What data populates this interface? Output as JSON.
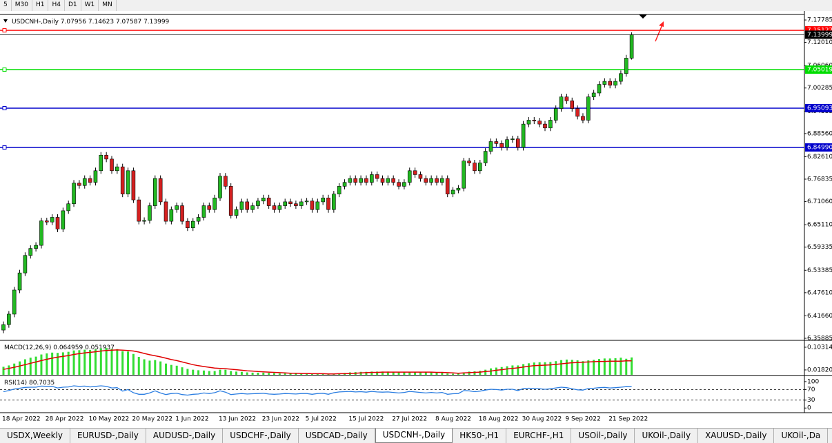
{
  "toolbar": {
    "timeframes": [
      "5",
      "M30",
      "H1",
      "H4",
      "D1",
      "W1",
      "MN"
    ]
  },
  "chart_data": [
    {
      "type": "candlestick",
      "title": "USDCNH-,Daily",
      "categories": [
        "18 Apr 2022",
        null,
        null,
        null,
        null,
        null,
        null,
        null,
        "28 Apr 2022",
        null,
        null,
        null,
        null,
        null,
        null,
        null,
        "10 May 2022",
        null,
        null,
        null,
        null,
        null,
        null,
        null,
        "20 May 2022",
        null,
        null,
        null,
        null,
        null,
        null,
        null,
        "1 Jun 2022",
        null,
        null,
        null,
        null,
        null,
        null,
        null,
        "13 Jun 2022",
        null,
        null,
        null,
        null,
        null,
        null,
        null,
        "23 Jun 2022",
        null,
        null,
        null,
        null,
        null,
        null,
        null,
        "5 Jul 2022",
        null,
        null,
        null,
        null,
        null,
        null,
        null,
        "15 Jul 2022",
        null,
        null,
        null,
        null,
        null,
        null,
        null,
        "27 Jul 2022",
        null,
        null,
        null,
        null,
        null,
        null,
        null,
        "8 Aug 2022",
        null,
        null,
        null,
        null,
        null,
        null,
        null,
        "18 Aug 2022",
        null,
        null,
        null,
        null,
        null,
        null,
        null,
        "30 Aug 2022",
        null,
        null,
        null,
        null,
        null,
        null,
        null,
        "9 Sep 2022",
        null,
        null,
        null,
        null,
        null,
        null,
        null,
        "21 Sep 2022",
        null,
        null,
        null,
        null
      ],
      "candles": [
        [
          6.38,
          6.402,
          6.372,
          6.394
        ],
        [
          6.394,
          6.429,
          6.386,
          6.421
        ],
        [
          6.421,
          6.491,
          6.413,
          6.483
        ],
        [
          6.483,
          6.535,
          6.475,
          6.527
        ],
        [
          6.527,
          6.58,
          6.519,
          6.572
        ],
        [
          6.572,
          6.598,
          6.564,
          6.59
        ],
        [
          6.59,
          6.606,
          6.582,
          6.598
        ],
        [
          6.598,
          6.669,
          6.59,
          6.661
        ],
        [
          6.661,
          6.669,
          6.65,
          6.658
        ],
        [
          6.658,
          6.678,
          6.65,
          6.67
        ],
        [
          6.67,
          6.678,
          6.632,
          6.64
        ],
        [
          6.64,
          6.695,
          6.632,
          6.687
        ],
        [
          6.687,
          6.713,
          6.679,
          6.705
        ],
        [
          6.705,
          6.766,
          6.697,
          6.758
        ],
        [
          6.758,
          6.766,
          6.744,
          6.752
        ],
        [
          6.752,
          6.778,
          6.744,
          6.77
        ],
        [
          6.77,
          6.778,
          6.752,
          6.76
        ],
        [
          6.76,
          6.798,
          6.752,
          6.79
        ],
        [
          6.79,
          6.838,
          6.782,
          6.83
        ],
        [
          6.83,
          6.838,
          6.812,
          6.82
        ],
        [
          6.82,
          6.828,
          6.782,
          6.79
        ],
        [
          6.79,
          6.808,
          6.782,
          6.8
        ],
        [
          6.8,
          6.808,
          6.722,
          6.73
        ],
        [
          6.73,
          6.798,
          6.722,
          6.79
        ],
        [
          6.79,
          6.798,
          6.707,
          6.715
        ],
        [
          6.715,
          6.723,
          6.652,
          6.66
        ],
        [
          6.66,
          6.67,
          6.652,
          6.662
        ],
        [
          6.662,
          6.708,
          6.654,
          6.7
        ],
        [
          6.7,
          6.778,
          6.692,
          6.77
        ],
        [
          6.77,
          6.778,
          6.702,
          6.71
        ],
        [
          6.71,
          6.718,
          6.652,
          6.66
        ],
        [
          6.66,
          6.698,
          6.652,
          6.69
        ],
        [
          6.69,
          6.708,
          6.682,
          6.7
        ],
        [
          6.7,
          6.708,
          6.652,
          6.66
        ],
        [
          6.66,
          6.668,
          6.635,
          6.643
        ],
        [
          6.643,
          6.668,
          6.635,
          6.66
        ],
        [
          6.66,
          6.678,
          6.652,
          6.67
        ],
        [
          6.67,
          6.708,
          6.662,
          6.7
        ],
        [
          6.7,
          6.708,
          6.682,
          6.69
        ],
        [
          6.69,
          6.728,
          6.682,
          6.72
        ],
        [
          6.72,
          6.784,
          6.712,
          6.776
        ],
        [
          6.776,
          6.784,
          6.742,
          6.75
        ],
        [
          6.75,
          6.758,
          6.667,
          6.675
        ],
        [
          6.675,
          6.698,
          6.667,
          6.69
        ],
        [
          6.69,
          6.718,
          6.682,
          6.71
        ],
        [
          6.71,
          6.718,
          6.682,
          6.69
        ],
        [
          6.69,
          6.708,
          6.682,
          6.7
        ],
        [
          6.7,
          6.72,
          6.692,
          6.712
        ],
        [
          6.712,
          6.728,
          6.704,
          6.72
        ],
        [
          6.72,
          6.728,
          6.692,
          6.7
        ],
        [
          6.7,
          6.708,
          6.682,
          6.69
        ],
        [
          6.69,
          6.708,
          6.682,
          6.7
        ],
        [
          6.7,
          6.718,
          6.692,
          6.71
        ],
        [
          6.71,
          6.718,
          6.697,
          6.705
        ],
        [
          6.705,
          6.713,
          6.692,
          6.7
        ],
        [
          6.7,
          6.718,
          6.692,
          6.71
        ],
        [
          6.71,
          6.72,
          6.702,
          6.712
        ],
        [
          6.712,
          6.72,
          6.682,
          6.69
        ],
        [
          6.69,
          6.718,
          6.682,
          6.71
        ],
        [
          6.71,
          6.728,
          6.702,
          6.72
        ],
        [
          6.72,
          6.728,
          6.682,
          6.69
        ],
        [
          6.69,
          6.738,
          6.682,
          6.73
        ],
        [
          6.73,
          6.758,
          6.722,
          6.75
        ],
        [
          6.75,
          6.768,
          6.742,
          6.76
        ],
        [
          6.76,
          6.778,
          6.752,
          6.77
        ],
        [
          6.77,
          6.778,
          6.752,
          6.76
        ],
        [
          6.76,
          6.778,
          6.752,
          6.77
        ],
        [
          6.77,
          6.778,
          6.752,
          6.76
        ],
        [
          6.76,
          6.788,
          6.752,
          6.78
        ],
        [
          6.78,
          6.788,
          6.762,
          6.77
        ],
        [
          6.77,
          6.778,
          6.752,
          6.76
        ],
        [
          6.76,
          6.778,
          6.752,
          6.77
        ],
        [
          6.77,
          6.778,
          6.752,
          6.76
        ],
        [
          6.76,
          6.768,
          6.742,
          6.75
        ],
        [
          6.75,
          6.768,
          6.742,
          6.76
        ],
        [
          6.76,
          6.798,
          6.752,
          6.79
        ],
        [
          6.79,
          6.798,
          6.772,
          6.78
        ],
        [
          6.78,
          6.788,
          6.762,
          6.77
        ],
        [
          6.77,
          6.778,
          6.752,
          6.76
        ],
        [
          6.76,
          6.778,
          6.752,
          6.77
        ],
        [
          6.77,
          6.778,
          6.752,
          6.76
        ],
        [
          6.76,
          6.778,
          6.752,
          6.77
        ],
        [
          6.77,
          6.778,
          6.722,
          6.73
        ],
        [
          6.73,
          6.748,
          6.722,
          6.74
        ],
        [
          6.74,
          6.753,
          6.732,
          6.745
        ],
        [
          6.745,
          6.823,
          6.737,
          6.815
        ],
        [
          6.815,
          6.823,
          6.802,
          6.81
        ],
        [
          6.81,
          6.818,
          6.782,
          6.79
        ],
        [
          6.79,
          6.818,
          6.782,
          6.81
        ],
        [
          6.81,
          6.848,
          6.802,
          6.84
        ],
        [
          6.84,
          6.873,
          6.832,
          6.865
        ],
        [
          6.865,
          6.873,
          6.852,
          6.86
        ],
        [
          6.86,
          6.868,
          6.842,
          6.85
        ],
        [
          6.85,
          6.878,
          6.842,
          6.87
        ],
        [
          6.87,
          6.88,
          6.862,
          6.872
        ],
        [
          6.872,
          6.88,
          6.842,
          6.85
        ],
        [
          6.85,
          6.918,
          6.842,
          6.91
        ],
        [
          6.91,
          6.928,
          6.902,
          6.92
        ],
        [
          6.92,
          6.928,
          6.91,
          6.918
        ],
        [
          6.918,
          6.926,
          6.902,
          6.91
        ],
        [
          6.91,
          6.918,
          6.892,
          6.9
        ],
        [
          6.9,
          6.928,
          6.892,
          6.92
        ],
        [
          6.92,
          6.958,
          6.912,
          6.95
        ],
        [
          6.95,
          6.988,
          6.942,
          6.98
        ],
        [
          6.98,
          6.988,
          6.962,
          6.97
        ],
        [
          6.97,
          6.978,
          6.942,
          6.95
        ],
        [
          6.95,
          6.958,
          6.922,
          6.93
        ],
        [
          6.93,
          6.938,
          6.912,
          6.92
        ],
        [
          6.92,
          6.988,
          6.912,
          6.98
        ],
        [
          6.98,
          6.998,
          6.972,
          6.99
        ],
        [
          6.99,
          7.02,
          6.982,
          7.012
        ],
        [
          7.012,
          7.028,
          7.004,
          7.02
        ],
        [
          7.02,
          7.028,
          7.002,
          7.01
        ],
        [
          7.01,
          7.028,
          7.002,
          7.02
        ],
        [
          7.02,
          7.048,
          7.012,
          7.04
        ],
        [
          7.04,
          7.088,
          7.032,
          7.0796
        ],
        [
          7.07956,
          7.14623,
          7.07587,
          7.13999
        ]
      ],
      "up_color": "#22b822",
      "down_color": "#d42020",
      "ylim": [
        6.3553,
        7.1903
      ],
      "yticks": [
        7.17785,
        {
          "value": 7.1201,
          "label": "7.12010"
        },
        {
          "value": 7.0606,
          "label": "7.06060"
        },
        7.00285,
        6.94335,
        {
          "value": 6.8856,
          "label": "6.88560"
        },
        {
          "value": 6.8261,
          "label": "6.82610"
        },
        6.76835,
        {
          "value": 6.7106,
          "label": "6.71060"
        },
        {
          "value": 6.6511,
          "label": "6.65110"
        },
        6.59335,
        6.53385,
        {
          "value": 6.4761,
          "label": "6.47610"
        },
        {
          "value": 6.4166,
          "label": "6.41660"
        },
        6.35885
      ],
      "levels": [
        {
          "value": 7.15122,
          "color": "#ff0000"
        },
        {
          "value": 7.05019,
          "color": "#00dd00"
        },
        {
          "value": 6.95093,
          "color": "#0000cc"
        },
        {
          "value": 6.8499,
          "label": "6.84990",
          "color": "#0000cc"
        }
      ]
    },
    {
      "type": "macd",
      "title": "MACD(12,26,9)",
      "histogram": [
        0.03,
        0.035,
        0.042,
        0.05,
        0.058,
        0.064,
        0.068,
        0.076,
        0.08,
        0.083,
        0.082,
        0.084,
        0.086,
        0.091,
        0.092,
        0.094,
        0.093,
        0.095,
        0.099,
        0.1,
        0.097,
        0.096,
        0.088,
        0.087,
        0.078,
        0.067,
        0.058,
        0.053,
        0.055,
        0.05,
        0.042,
        0.037,
        0.034,
        0.028,
        0.022,
        0.019,
        0.017,
        0.016,
        0.014,
        0.014,
        0.019,
        0.019,
        0.014,
        0.012,
        0.011,
        0.009,
        0.008,
        0.008,
        0.008,
        0.007,
        0.006,
        0.005,
        0.005,
        0.004,
        0.004,
        0.004,
        0.004,
        0.003,
        0.003,
        0.003,
        0.002,
        0.003,
        0.005,
        0.007,
        0.009,
        0.01,
        0.011,
        0.011,
        0.012,
        0.012,
        0.012,
        0.012,
        0.011,
        0.01,
        0.01,
        0.011,
        0.011,
        0.01,
        0.009,
        0.009,
        0.008,
        0.008,
        0.005,
        0.004,
        0.004,
        0.009,
        0.012,
        0.013,
        0.015,
        0.019,
        0.024,
        0.027,
        0.029,
        0.032,
        0.035,
        0.035,
        0.04,
        0.043,
        0.046,
        0.047,
        0.047,
        0.048,
        0.051,
        0.055,
        0.057,
        0.056,
        0.054,
        0.051,
        0.054,
        0.056,
        0.059,
        0.061,
        0.061,
        0.062,
        0.064,
        0.06,
        0.064959
      ],
      "signal": [
        0.02,
        0.024,
        0.028,
        0.033,
        0.038,
        0.043,
        0.048,
        0.053,
        0.058,
        0.062,
        0.066,
        0.069,
        0.072,
        0.076,
        0.079,
        0.082,
        0.084,
        0.086,
        0.089,
        0.091,
        0.092,
        0.093,
        0.092,
        0.091,
        0.089,
        0.085,
        0.08,
        0.075,
        0.071,
        0.067,
        0.062,
        0.057,
        0.053,
        0.048,
        0.043,
        0.038,
        0.034,
        0.031,
        0.028,
        0.025,
        0.024,
        0.023,
        0.021,
        0.019,
        0.017,
        0.015,
        0.014,
        0.012,
        0.011,
        0.01,
        0.009,
        0.008,
        0.007,
        0.006,
        0.006,
        0.005,
        0.005,
        0.004,
        0.004,
        0.004,
        0.003,
        0.003,
        0.004,
        0.004,
        0.005,
        0.006,
        0.007,
        0.008,
        0.009,
        0.009,
        0.01,
        0.01,
        0.01,
        0.01,
        0.01,
        0.01,
        0.01,
        0.01,
        0.01,
        0.01,
        0.009,
        0.009,
        0.008,
        0.007,
        0.006,
        0.007,
        0.008,
        0.009,
        0.01,
        0.012,
        0.014,
        0.017,
        0.019,
        0.022,
        0.024,
        0.026,
        0.029,
        0.032,
        0.034,
        0.035,
        0.036,
        0.037,
        0.039,
        0.041,
        0.043,
        0.045,
        0.046,
        0.047,
        0.048,
        0.049,
        0.05,
        0.05,
        0.051,
        0.051,
        0.051,
        0.052,
        0.051937
      ],
      "histogram_color": "#33dd33",
      "signal_color": "#e00000",
      "ylim": [
        0,
        0.1237
      ],
      "yticks": [
        0.103149,
        {
          "value": 0.0182,
          "label": "0.01820"
        }
      ]
    },
    {
      "type": "rsi",
      "title": "RSI(14)",
      "values": [
        62,
        66,
        72,
        75,
        78,
        79,
        79,
        83,
        82,
        82,
        76,
        79,
        80,
        84,
        82,
        83,
        80,
        82,
        84,
        82,
        76,
        77,
        64,
        70,
        58,
        52,
        52,
        57,
        65,
        57,
        51,
        55,
        56,
        51,
        49,
        52,
        53,
        57,
        55,
        58,
        65,
        60,
        51,
        53,
        55,
        53,
        54,
        55,
        56,
        53,
        52,
        53,
        55,
        54,
        53,
        55,
        55,
        52,
        55,
        56,
        52,
        58,
        61,
        62,
        63,
        61,
        62,
        60,
        63,
        61,
        60,
        61,
        59,
        57,
        59,
        63,
        61,
        59,
        57,
        59,
        57,
        59,
        52,
        54,
        55,
        66,
        65,
        62,
        64,
        68,
        71,
        70,
        68,
        71,
        71,
        66,
        74,
        75,
        74,
        73,
        71,
        73,
        76,
        79,
        77,
        73,
        69,
        68,
        74,
        75,
        77,
        78,
        76,
        77,
        79,
        81,
        80.7035
      ],
      "color": "#2a7de1",
      "ylim": [
        -15,
        118
      ],
      "yticks": [
        100,
        70,
        30,
        0
      ],
      "levels": [
        70,
        30
      ]
    }
  ],
  "tabs": [
    "USDX,Weekly",
    "EURUSD-,Daily",
    "AUDUSD-,Daily",
    "USDCHF-,Daily",
    "USDCAD-,Daily",
    "USDCNH-,Daily",
    "HK50-,H1",
    "EURCHF-,H1",
    "USOil-,Daily",
    "UKOil-,Daily",
    "XAUUSD-,Daily",
    "UKOil-,Da"
  ],
  "active_tab": 5
}
